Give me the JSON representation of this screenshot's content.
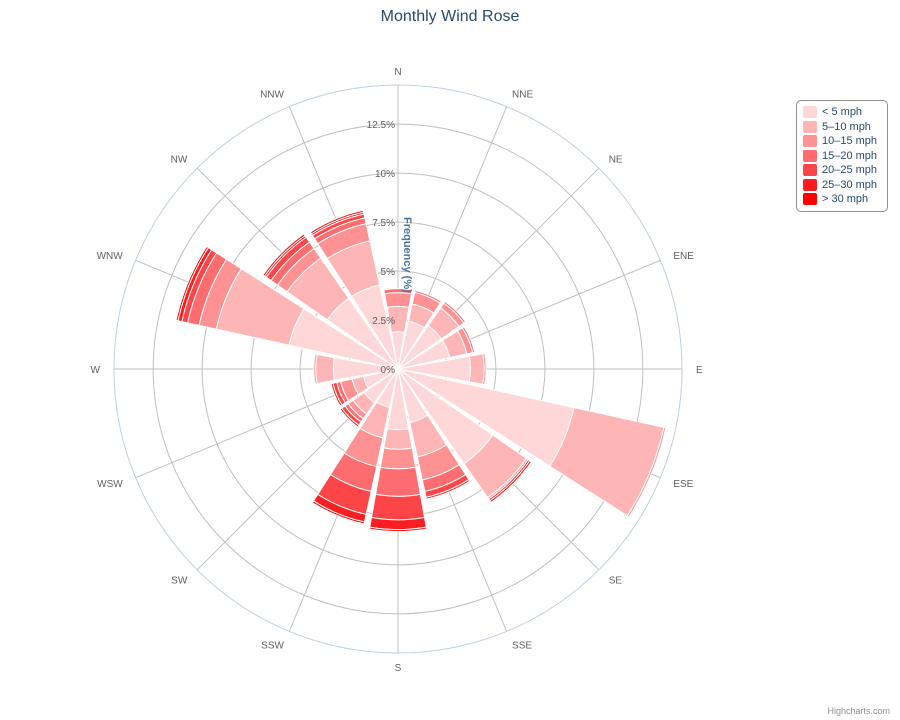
{
  "chart_data": {
    "type": "stacked-polar-bar",
    "title": "Monthly Wind Rose",
    "ylabel": "Frequency (%)",
    "directions": [
      "N",
      "NNE",
      "NE",
      "ENE",
      "E",
      "ESE",
      "SE",
      "SSE",
      "S",
      "SSW",
      "SW",
      "WSW",
      "W",
      "WNW",
      "NW",
      "NNW"
    ],
    "y_ticks": [
      "0%",
      "2.5%",
      "5%",
      "7.5%",
      "10%",
      "12.5%"
    ],
    "ylim": [
      0,
      14.5
    ],
    "legend_position": "top-right",
    "series": [
      {
        "name": "< 5 mph",
        "color": "#fed7d8",
        "values": [
          1.9,
          2.5,
          2.7,
          2.7,
          3.7,
          9.2,
          5.9,
          2.8,
          3.1,
          2.0,
          2.1,
          1.8,
          3.3,
          5.7,
          4.4,
          4.4
        ]
      },
      {
        "name": "5-10 mph",
        "color": "#feb5b6",
        "values": [
          1.3,
          0.9,
          1.1,
          0.9,
          0.7,
          4.7,
          2.1,
          1.8,
          1.0,
          1.6,
          0.7,
          0.6,
          0.9,
          3.8,
          2.5,
          2.3
        ]
      },
      {
        "name": "10-15 mph",
        "color": "#fe9293",
        "values": [
          0.7,
          0.6,
          0.3,
          0.3,
          0.1,
          0.1,
          0.1,
          1.2,
          1.0,
          1.5,
          0.3,
          0.6,
          0.1,
          0.9,
          0.6,
          0.9
        ]
      },
      {
        "name": "15-20 mph",
        "color": "#fd6c6e",
        "values": [
          0.2,
          0.1,
          0.1,
          0.1,
          0.0,
          0.0,
          0.0,
          0.6,
          1.4,
          1.3,
          0.2,
          0.2,
          0.0,
          0.6,
          0.4,
          0.3
        ]
      },
      {
        "name": "20-25 mph",
        "color": "#fd4547",
        "values": [
          0.0,
          0.0,
          0.0,
          0.0,
          0.0,
          0.0,
          0.0,
          0.3,
          1.2,
          1.2,
          0.2,
          0.2,
          0.0,
          0.3,
          0.3,
          0.2
        ]
      },
      {
        "name": "25-30 mph",
        "color": "#fb1e20",
        "values": [
          0.0,
          0.0,
          0.0,
          0.0,
          0.0,
          0.0,
          0.1,
          0.1,
          0.5,
          0.4,
          0.1,
          0.1,
          0.0,
          0.2,
          0.1,
          0.1
        ]
      },
      {
        "name": "> 30 mph",
        "color": "#ff0000",
        "values": [
          0.0,
          0.0,
          0.0,
          0.0,
          0.0,
          0.0,
          0.1,
          0.0,
          0.1,
          0.1,
          0.0,
          0.0,
          0.0,
          0.1,
          0.1,
          0.1
        ]
      }
    ]
  },
  "legend": {
    "items": [
      "< 5 mph",
      "5–10 mph",
      "10–15 mph",
      "15–20 mph",
      "20–25 mph",
      "25–30 mph",
      "> 30 mph"
    ]
  },
  "credits": "Highcharts.com"
}
